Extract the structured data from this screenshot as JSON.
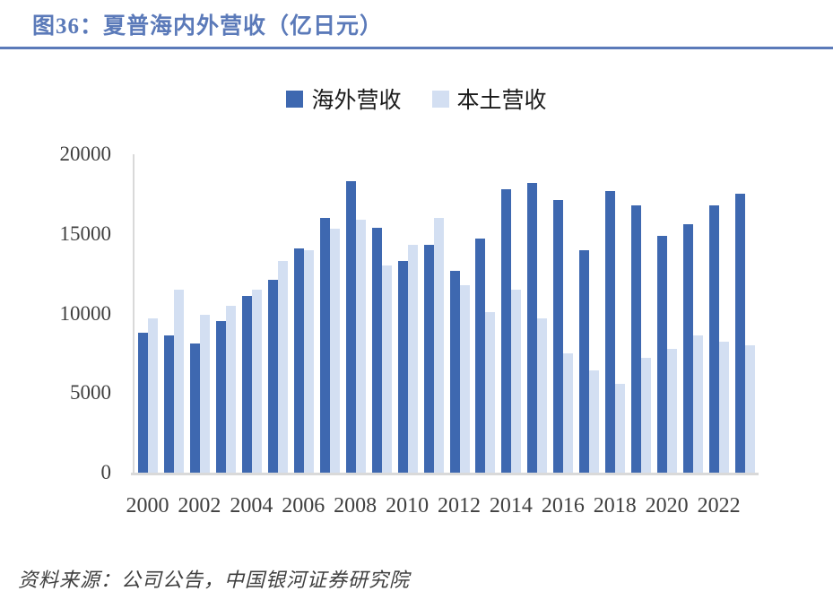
{
  "page": {
    "figure_title": "图36：夏普海内外营收（亿日元）",
    "source_note": "资料来源：公司公告，中国银河证券研究院"
  },
  "legend": {
    "items": [
      {
        "label": "海外营收",
        "color": "#3E68B0"
      },
      {
        "label": "本土营收",
        "color": "#D3DFF2"
      }
    ]
  },
  "chart_data": {
    "type": "bar",
    "title": "图36：夏普海内外营收（亿日元）",
    "unit": "亿日元",
    "categories": [
      2000,
      2001,
      2002,
      2003,
      2004,
      2005,
      2006,
      2007,
      2008,
      2009,
      2010,
      2011,
      2012,
      2013,
      2014,
      2015,
      2016,
      2017,
      2018,
      2019,
      2020,
      2021,
      2022,
      2023
    ],
    "series": [
      {
        "name": "海外营收",
        "color": "#3E68B0",
        "values": [
          8800,
          8600,
          8100,
          9500,
          11100,
          12100,
          14100,
          16000,
          18300,
          15400,
          13300,
          14300,
          12700,
          14700,
          17800,
          18200,
          17100,
          14000,
          17700,
          16800,
          14900,
          15600,
          16800,
          17500
        ]
      },
      {
        "name": "本土营收",
        "color": "#D3DFF2",
        "values": [
          9700,
          11500,
          9900,
          10500,
          11500,
          13300,
          14000,
          15300,
          15900,
          13000,
          14300,
          16000,
          11800,
          10100,
          11500,
          9700,
          7500,
          6400,
          5600,
          7200,
          7800,
          8600,
          8200,
          8000
        ]
      }
    ],
    "ylim": [
      0,
      20000
    ],
    "yticks": [
      0,
      5000,
      10000,
      15000,
      20000
    ],
    "xtick_labels": [
      "2000",
      "2002",
      "2004",
      "2006",
      "2008",
      "2010",
      "2012",
      "2014",
      "2016",
      "2018",
      "2020",
      "2022"
    ],
    "grid": false,
    "legend_position": "top-center"
  },
  "colors": {
    "accent_blue": "#5B7AB9",
    "axis_line": "#D9D9D9",
    "tick_text": "#404040"
  }
}
